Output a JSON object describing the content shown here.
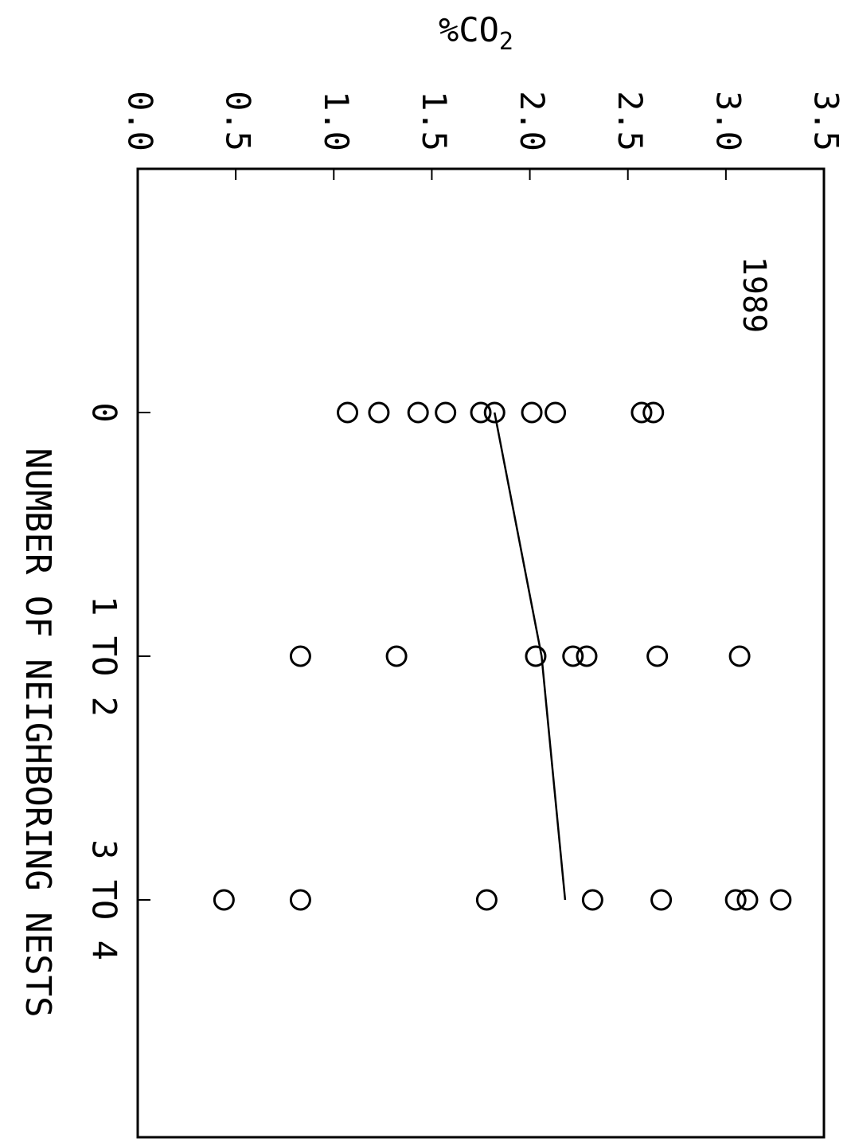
{
  "chart_data": {
    "type": "scatter",
    "title": "1989",
    "ylabel": "%CO",
    "ylabel_subscript": "2",
    "xlabel": "NUMBER OF NEIGHBORING NESTS",
    "categories": [
      "0",
      "1 TO 2",
      "3 TO 4"
    ],
    "ylim": [
      0.0,
      3.5
    ],
    "y_ticks": [
      0.0,
      0.5,
      1.0,
      1.5,
      2.0,
      2.5,
      3.0,
      3.5
    ],
    "y_tick_labels": [
      "0.0",
      "0.5",
      "1.0",
      "1.5",
      "2.0",
      "2.5",
      "3.0",
      "3.5"
    ],
    "grid": false,
    "series": [
      {
        "points": [
          {
            "category": "0",
            "values": [
              1.07,
              1.23,
              1.43,
              1.57,
              1.75,
              1.82,
              2.01,
              2.13,
              2.57,
              2.63
            ]
          },
          {
            "category": "1 TO 2",
            "values": [
              0.83,
              1.32,
              2.03,
              2.22,
              2.29,
              2.65,
              3.07
            ]
          },
          {
            "category": "3 TO 4",
            "values": [
              0.44,
              0.83,
              1.78,
              2.32,
              2.67,
              3.05,
              3.11,
              3.28
            ]
          }
        ]
      },
      {
        "line": [
          {
            "category": "0",
            "value": 1.82
          },
          {
            "category": "1 TO 2",
            "value": 2.06
          },
          {
            "category": "3 TO 4",
            "value": 2.18
          }
        ]
      }
    ]
  }
}
